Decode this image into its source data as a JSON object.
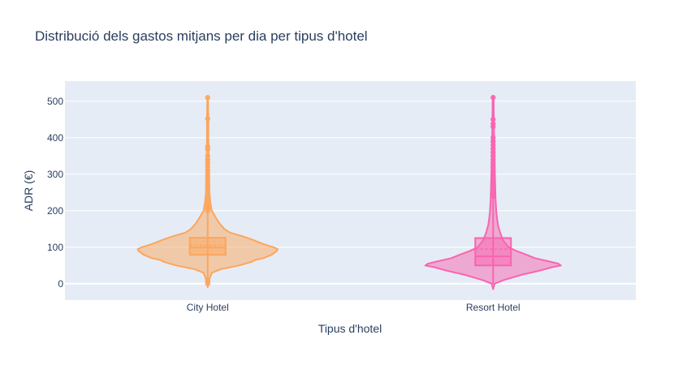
{
  "chart_data": {
    "type": "violin",
    "title": "Distribució dels gastos mitjans per dia per tipus d'hotel",
    "xlabel": "Tipus d'hotel",
    "ylabel": "ADR (€)",
    "ylim": [
      -45,
      555
    ],
    "yticks": [
      0,
      100,
      200,
      300,
      400,
      500
    ],
    "ytick_labels": [
      "0",
      "100",
      "200",
      "300",
      "400",
      "500"
    ],
    "grid": true,
    "legend": "none",
    "background": "#e5ecf6",
    "categories": [
      "City Hotel",
      "Resort Hotel"
    ],
    "series": [
      {
        "category": "City Hotel",
        "color": "#fca65c",
        "box": {
          "q1": 79,
          "median": 99,
          "q3": 126,
          "mean": 105,
          "whisker_low": 0,
          "whisker_high": 196
        },
        "range": [
          -10,
          510
        ],
        "density": [
          [
            -10,
            0
          ],
          [
            0,
            0.005
          ],
          [
            10,
            0.02
          ],
          [
            30,
            0.06
          ],
          [
            40,
            0.19
          ],
          [
            50,
            0.45
          ],
          [
            60,
            0.63
          ],
          [
            65,
            0.68
          ],
          [
            70,
            0.8
          ],
          [
            80,
            0.92
          ],
          [
            90,
            0.99
          ],
          [
            95,
            1.0
          ],
          [
            100,
            0.94
          ],
          [
            110,
            0.78
          ],
          [
            120,
            0.65
          ],
          [
            130,
            0.5
          ],
          [
            140,
            0.32
          ],
          [
            150,
            0.24
          ],
          [
            165,
            0.17
          ],
          [
            180,
            0.12
          ],
          [
            200,
            0.06
          ],
          [
            220,
            0.04
          ],
          [
            250,
            0.025
          ],
          [
            300,
            0.02
          ],
          [
            350,
            0.015
          ],
          [
            400,
            0.01
          ],
          [
            450,
            0.01
          ],
          [
            500,
            0.005
          ],
          [
            510,
            0
          ]
        ],
        "outliers": [
          452,
          510,
          375,
          368,
          350,
          340,
          330,
          320,
          310,
          300,
          290,
          280,
          270,
          260,
          250,
          240,
          230,
          220,
          212,
          205,
          200,
          10,
          5,
          0
        ]
      },
      {
        "category": "Resort Hotel",
        "color": "#f865b0",
        "box": {
          "q1": 50,
          "median": 75,
          "q3": 125,
          "mean": 95,
          "whisker_low": 0,
          "whisker_high": 240
        },
        "range": [
          -15,
          515
        ],
        "density": [
          [
            -15,
            0
          ],
          [
            0,
            0.02
          ],
          [
            10,
            0.15
          ],
          [
            25,
            0.42
          ],
          [
            35,
            0.65
          ],
          [
            45,
            0.84
          ],
          [
            50,
            0.97
          ],
          [
            55,
            0.93
          ],
          [
            62,
            0.78
          ],
          [
            70,
            0.6
          ],
          [
            80,
            0.47
          ],
          [
            90,
            0.33
          ],
          [
            100,
            0.22
          ],
          [
            120,
            0.14
          ],
          [
            140,
            0.1
          ],
          [
            160,
            0.07
          ],
          [
            180,
            0.055
          ],
          [
            200,
            0.045
          ],
          [
            230,
            0.035
          ],
          [
            270,
            0.03
          ],
          [
            300,
            0.025
          ],
          [
            350,
            0.02
          ],
          [
            400,
            0.015
          ],
          [
            450,
            0.01
          ],
          [
            500,
            0.008
          ],
          [
            515,
            0
          ]
        ],
        "outliers": [
          510,
          450,
          438,
          430,
          400,
          390,
          380,
          370,
          360,
          350,
          340,
          330,
          320,
          310,
          300,
          290,
          280,
          270,
          260,
          250,
          240
        ]
      }
    ]
  }
}
